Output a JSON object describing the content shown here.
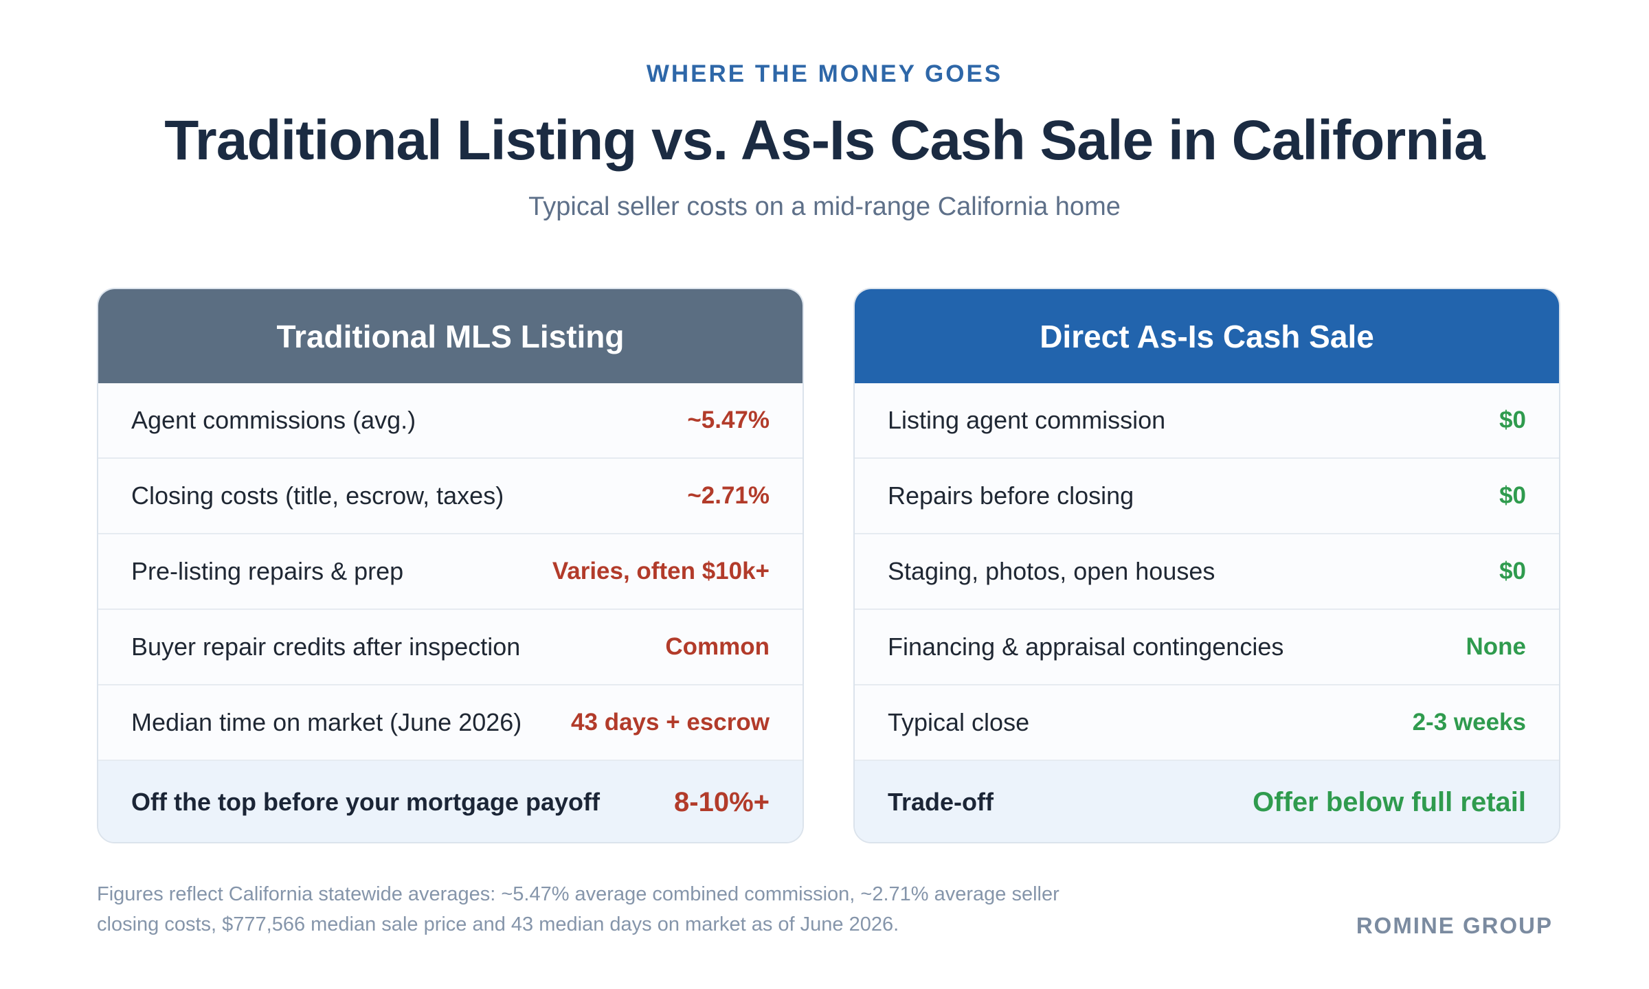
{
  "kicker": "WHERE THE MONEY GOES",
  "title": "Traditional Listing vs. As-Is Cash Sale in California",
  "subtitle": "Typical seller costs on a mid-range California home",
  "traditional": {
    "header": "Traditional MLS Listing",
    "value_color": "#b23b2a",
    "rows": [
      {
        "label": "Agent commissions (avg.)",
        "value": "~5.47%"
      },
      {
        "label": "Closing costs (title, escrow, taxes)",
        "value": "~2.71%"
      },
      {
        "label": "Pre-listing repairs & prep",
        "value": "Varies, often $10k+"
      },
      {
        "label": "Buyer repair credits after inspection",
        "value": "Common"
      },
      {
        "label": "Median time on market (June 2026)",
        "value": "43 days + escrow"
      }
    ],
    "total": {
      "label": "Off the top before your mortgage payoff",
      "value": "8-10%+"
    }
  },
  "cash_sale": {
    "header": "Direct As-Is Cash Sale",
    "value_color": "#2f9b4e",
    "rows": [
      {
        "label": "Listing agent commission",
        "value": "$0"
      },
      {
        "label": "Repairs before closing",
        "value": "$0"
      },
      {
        "label": "Staging, photos, open houses",
        "value": "$0"
      },
      {
        "label": "Financing & appraisal contingencies",
        "value": "None"
      },
      {
        "label": "Typical close",
        "value": "2-3 weeks"
      }
    ],
    "total": {
      "label": "Trade-off",
      "value": "Offer below full retail"
    }
  },
  "footnote": "Figures reflect California statewide averages: ~5.47% average combined commission, ~2.71% average seller closing costs, $777,566 median sale price and 43 median days on market as of June 2026.",
  "brand": "ROMINE GROUP"
}
